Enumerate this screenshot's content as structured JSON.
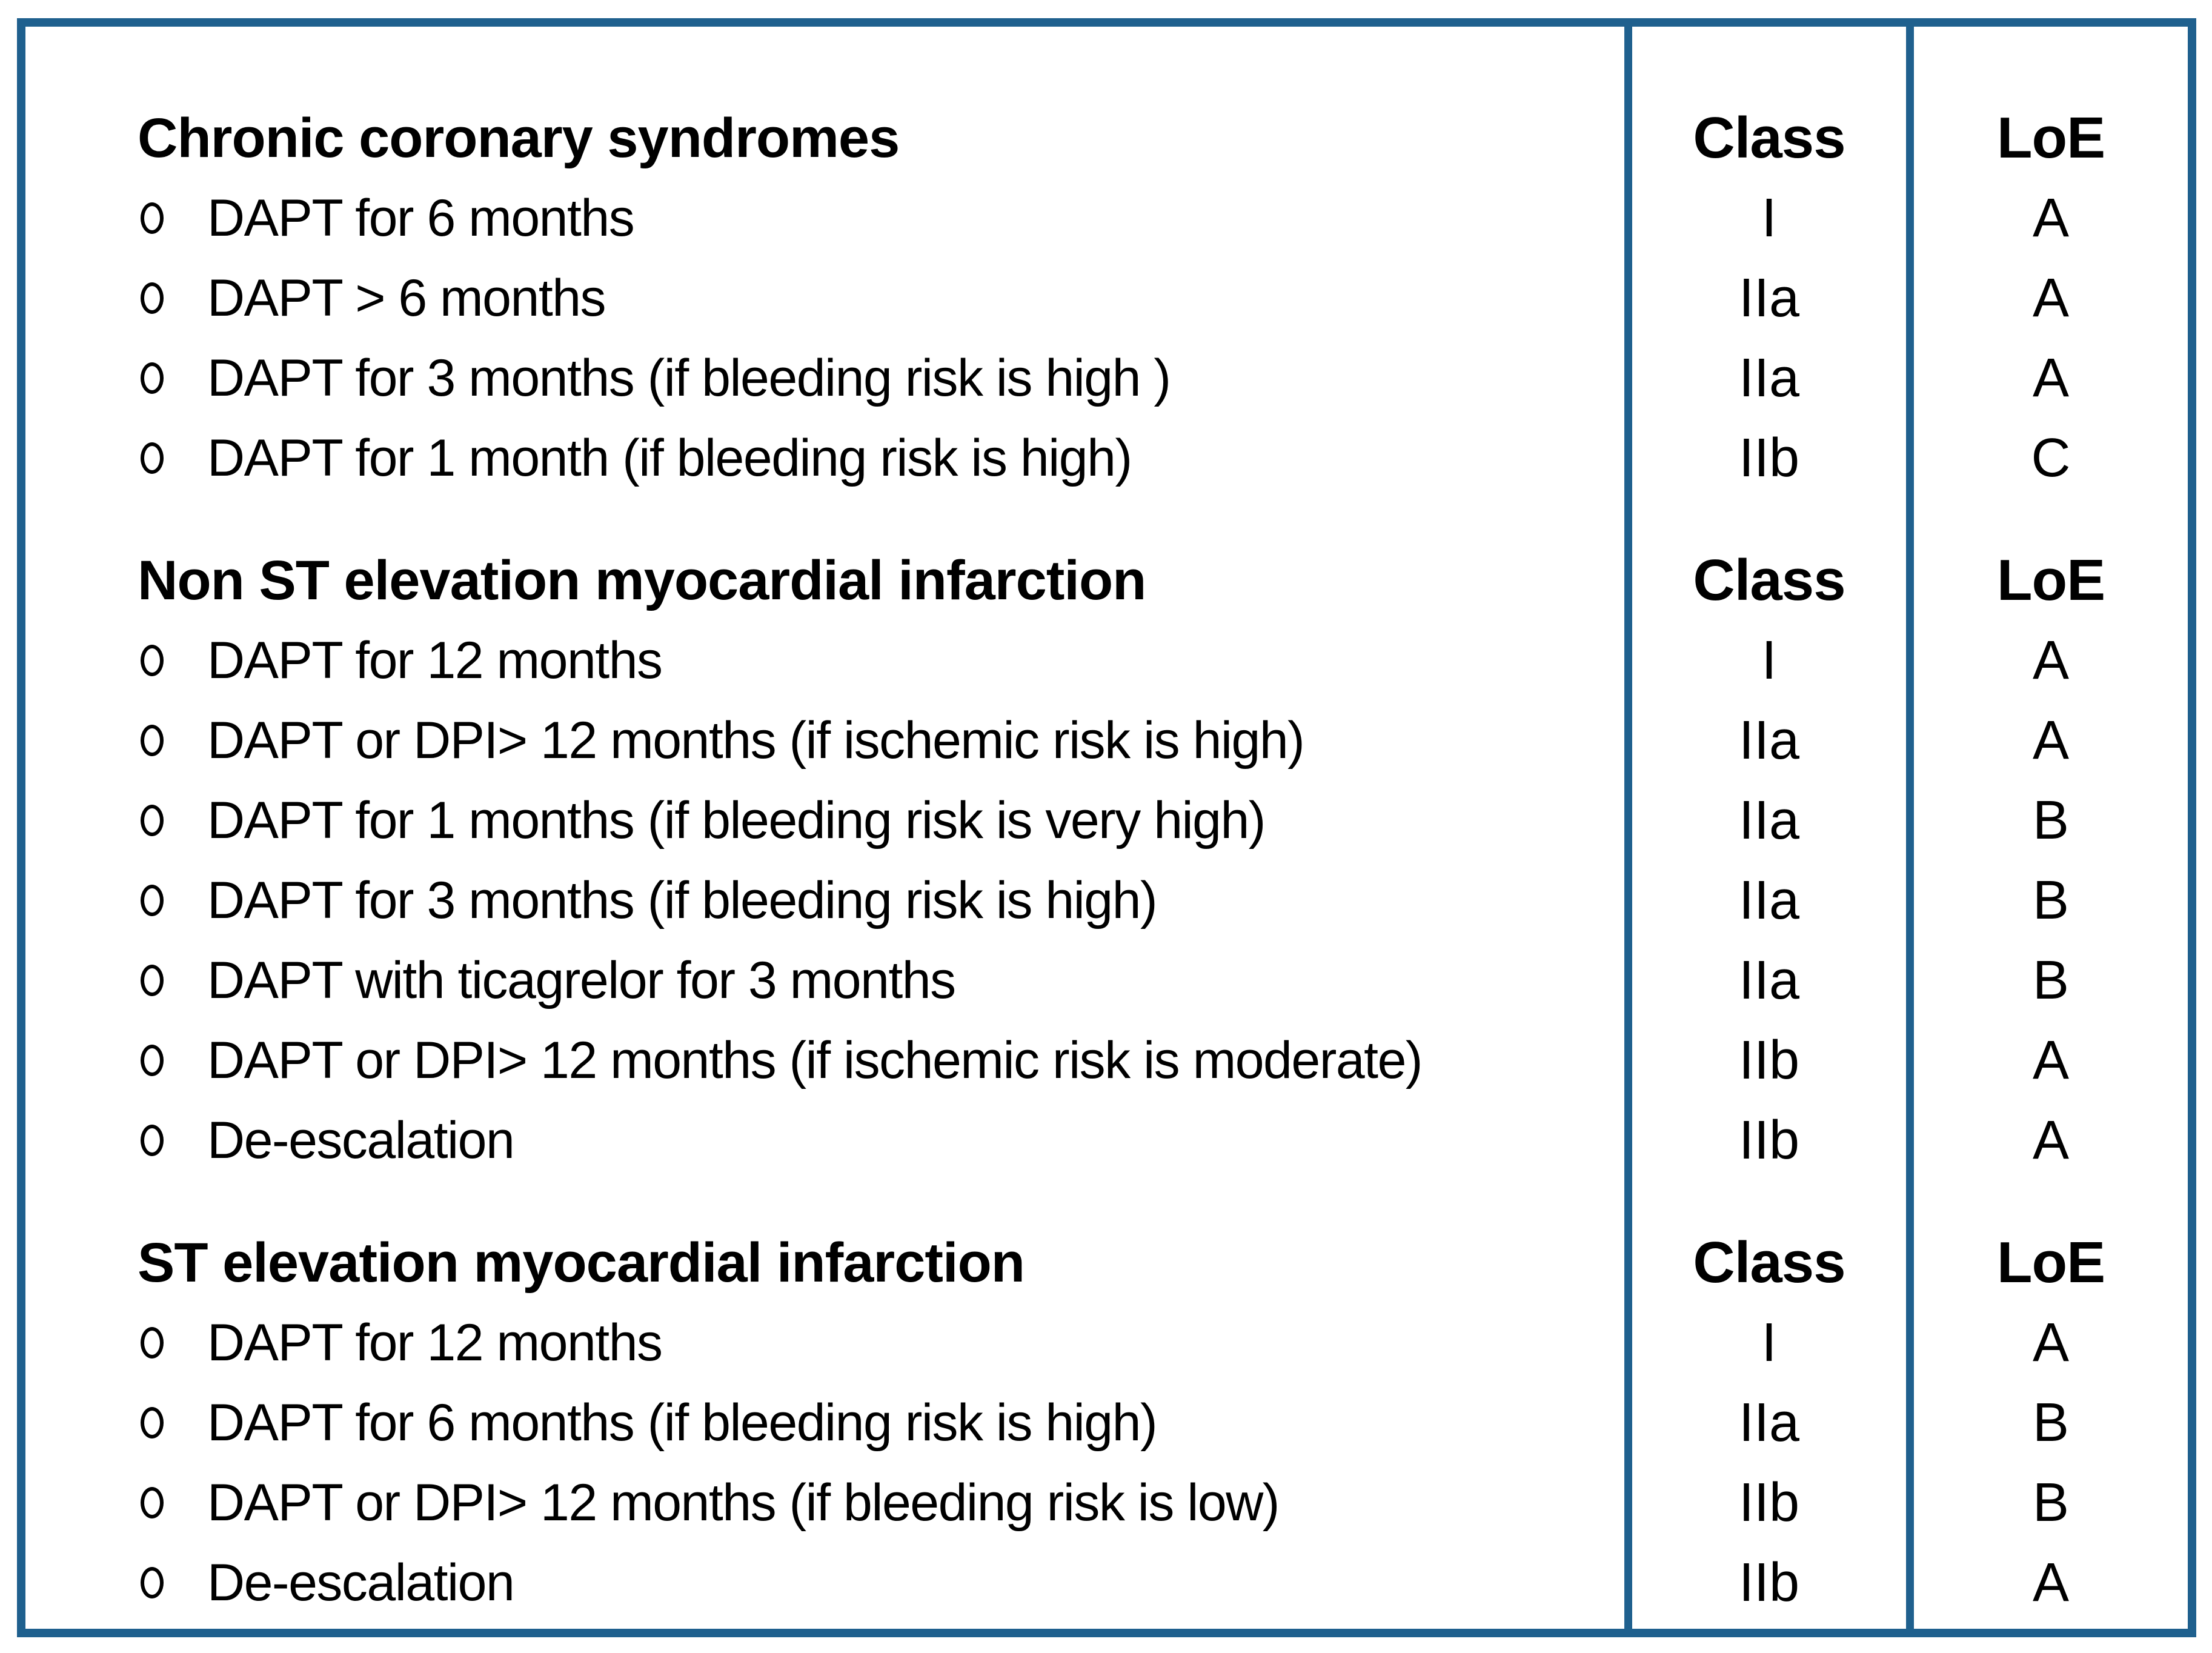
{
  "headers": {
    "class": "Class",
    "loe": "LoE"
  },
  "sections": [
    {
      "title": "Chronic coronary syndromes",
      "items": [
        {
          "text": "DAPT for 6 months",
          "class": "I",
          "loe": "A"
        },
        {
          "text": "DAPT > 6 months",
          "class": "IIa",
          "loe": "A"
        },
        {
          "text": "DAPT for 3 months (if bleeding risk is high )",
          "class": "IIa",
          "loe": "A"
        },
        {
          "text": "DAPT for 1 month (if bleeding risk is high)",
          "class": "IIb",
          "loe": "C"
        }
      ]
    },
    {
      "title": "Non ST elevation myocardial infarction",
      "items": [
        {
          "text": "DAPT for 12 months",
          "class": "I",
          "loe": "A"
        },
        {
          "text": "DAPT or DPI> 12 months (if ischemic risk is high)",
          "class": "IIa",
          "loe": "A"
        },
        {
          "text": "DAPT for 1 months (if bleeding risk is very high)",
          "class": "IIa",
          "loe": "B"
        },
        {
          "text": "DAPT for 3 months (if bleeding risk is high)",
          "class": "IIa",
          "loe": "B"
        },
        {
          "text": "DAPT with ticagrelor for 3 months",
          "class": "IIa",
          "loe": "B"
        },
        {
          "text": "DAPT or DPI> 12 months (if ischemic risk is moderate)",
          "class": "IIb",
          "loe": "A"
        },
        {
          "text": "De-escalation",
          "class": "IIb",
          "loe": "A"
        }
      ]
    },
    {
      "title": "ST elevation myocardial infarction",
      "items": [
        {
          "text": "DAPT for 12 months",
          "class": "I",
          "loe": "A"
        },
        {
          "text": "DAPT for 6 months (if bleeding risk is high)",
          "class": "IIa",
          "loe": "B"
        },
        {
          "text": "DAPT or DPI> 12 months (if bleeding risk is low)",
          "class": "IIb",
          "loe": "B"
        },
        {
          "text": "De-escalation",
          "class": "IIb",
          "loe": "A"
        }
      ]
    }
  ],
  "icons": {
    "bullet": "circle-outline"
  },
  "colors": {
    "border": "#1F608E",
    "text": "#000000",
    "background": "#FFFFFF"
  }
}
